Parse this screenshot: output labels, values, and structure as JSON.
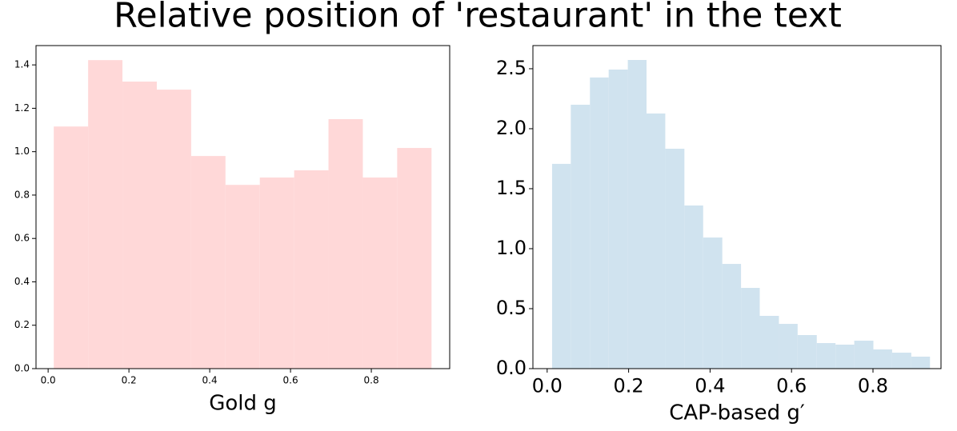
{
  "title": "Relative position of 'restaurant' in the text",
  "chart_data": [
    {
      "type": "histogram",
      "xlabel": "Gold g",
      "color": "#ffd8d8",
      "bins": [
        0.014,
        0.099,
        0.184,
        0.269,
        0.354,
        0.439,
        0.524,
        0.609,
        0.694,
        0.779,
        0.864,
        0.949
      ],
      "values": [
        1.116,
        1.422,
        1.323,
        1.286,
        0.98,
        0.847,
        0.881,
        0.914,
        1.15,
        0.881,
        1.017
      ],
      "xlim": [
        -0.03,
        0.994
      ],
      "ylim": [
        0,
        1.489
      ],
      "xticks": [
        {
          "value": 0,
          "label": "0.0"
        },
        0.2,
        0.4,
        0.6,
        0.8
      ],
      "yticks": [
        {
          "value": 0,
          "label": "0.0"
        },
        0.2,
        0.4,
        0.6,
        0.8,
        {
          "value": 1,
          "label": "1.0"
        },
        1.2,
        1.4
      ]
    },
    {
      "type": "histogram",
      "xlabel": "CAP-based g′",
      "color": "#d0e3ef",
      "bins": [
        0.012,
        0.058,
        0.105,
        0.151,
        0.198,
        0.244,
        0.29,
        0.337,
        0.383,
        0.43,
        0.476,
        0.522,
        0.569,
        0.615,
        0.662,
        0.708,
        0.754,
        0.801,
        0.847,
        0.894,
        0.94
      ],
      "values": [
        1.707,
        2.2,
        2.427,
        2.493,
        2.573,
        2.127,
        1.833,
        1.36,
        1.093,
        0.873,
        0.673,
        0.44,
        0.373,
        0.28,
        0.213,
        0.2,
        0.233,
        0.16,
        0.133,
        0.1
      ],
      "xlim": [
        -0.035,
        0.967
      ],
      "ylim": [
        0,
        2.693
      ],
      "xticks": [
        {
          "value": 0,
          "label": "0.0"
        },
        0.2,
        0.4,
        0.6,
        0.8
      ],
      "yticks": [
        {
          "value": 0,
          "label": "0.0"
        },
        0.5,
        {
          "value": 1,
          "label": "1.0"
        },
        1.5,
        {
          "value": 2,
          "label": "2.0"
        },
        2.5
      ]
    }
  ]
}
